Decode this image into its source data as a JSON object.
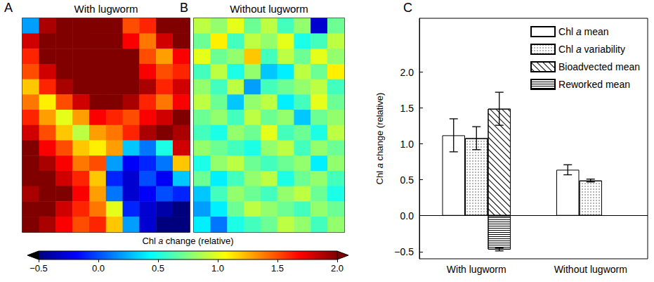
{
  "chart_data": [
    {
      "type": "heatmap",
      "panel": "A",
      "title": "With lugworm",
      "tick_labels": false,
      "cells": [
        [
          0.2,
          1.9,
          2.0,
          2.0,
          2.0,
          2.0,
          1.5,
          1.6,
          2.0,
          2.0
        ],
        [
          1.8,
          2.0,
          2.0,
          2.0,
          2.0,
          2.0,
          1.7,
          1.4,
          1.8,
          2.0
        ],
        [
          1.6,
          2.0,
          2.0,
          2.0,
          2.0,
          2.0,
          2.0,
          1.5,
          1.3,
          1.7
        ],
        [
          1.5,
          1.8,
          2.0,
          2.0,
          2.0,
          2.0,
          2.0,
          1.7,
          1.5,
          1.6
        ],
        [
          1.2,
          1.6,
          1.9,
          2.0,
          2.0,
          2.0,
          2.0,
          1.9,
          1.6,
          1.8
        ],
        [
          1.4,
          1.1,
          1.5,
          1.8,
          2.0,
          2.0,
          1.9,
          1.6,
          1.4,
          1.7
        ],
        [
          1.6,
          1.3,
          1.0,
          1.3,
          1.7,
          1.6,
          1.5,
          1.7,
          1.8,
          2.0
        ],
        [
          1.8,
          1.5,
          1.2,
          0.9,
          1.3,
          1.4,
          1.6,
          1.9,
          2.0,
          1.9
        ],
        [
          2.0,
          1.7,
          1.5,
          1.2,
          1.1,
          1.3,
          0.3,
          0.1,
          0.5,
          1.8
        ],
        [
          2.0,
          1.9,
          1.7,
          1.4,
          1.5,
          0.2,
          -0.2,
          -0.1,
          0.1,
          1.2
        ],
        [
          2.0,
          2.0,
          1.8,
          1.6,
          1.2,
          -0.1,
          -0.3,
          0.0,
          -0.2,
          0.3
        ],
        [
          1.9,
          2.0,
          2.0,
          1.7,
          1.3,
          0.1,
          -0.3,
          -0.2,
          0.0,
          -0.1
        ],
        [
          2.0,
          2.0,
          1.8,
          1.6,
          1.4,
          1.0,
          -0.1,
          -0.3,
          -0.4,
          -0.5
        ],
        [
          2.0,
          1.9,
          1.7,
          1.5,
          1.6,
          1.2,
          0.2,
          -0.3,
          -0.5,
          -0.5
        ]
      ]
    },
    {
      "type": "heatmap",
      "panel": "B",
      "title": "Without lugworm",
      "tick_labels": false,
      "cells": [
        [
          0.9,
          0.8,
          1.0,
          0.7,
          0.9,
          0.6,
          0.8,
          -0.3,
          0.7
        ],
        [
          0.7,
          1.1,
          0.6,
          0.9,
          0.8,
          1.0,
          0.5,
          0.6,
          0.9
        ],
        [
          1.0,
          0.7,
          0.8,
          1.2,
          0.6,
          0.9,
          0.7,
          1.0,
          0.8
        ],
        [
          0.6,
          0.9,
          0.5,
          0.8,
          0.3,
          0.4,
          0.9,
          0.7,
          1.1
        ],
        [
          0.8,
          0.6,
          0.9,
          0.2,
          0.6,
          0.7,
          0.8,
          0.9,
          0.6
        ],
        [
          0.9,
          0.7,
          0.3,
          0.8,
          0.9,
          0.4,
          0.6,
          1.0,
          0.7
        ],
        [
          0.7,
          0.8,
          0.6,
          0.9,
          0.7,
          0.8,
          0.3,
          0.7,
          0.8
        ],
        [
          0.6,
          0.5,
          0.8,
          0.7,
          1.0,
          0.6,
          0.7,
          0.5,
          0.9
        ],
        [
          0.8,
          0.7,
          0.6,
          0.5,
          0.8,
          0.9,
          0.6,
          0.8,
          0.7
        ],
        [
          0.5,
          0.8,
          0.9,
          0.7,
          0.6,
          0.7,
          0.8,
          0.4,
          0.8
        ],
        [
          0.7,
          0.4,
          0.6,
          0.8,
          0.9,
          0.5,
          0.7,
          0.8,
          0.6
        ],
        [
          0.3,
          0.6,
          0.8,
          0.7,
          0.6,
          0.8,
          0.9,
          0.7,
          0.5
        ],
        [
          0.2,
          0.4,
          0.7,
          0.9,
          0.8,
          0.7,
          0.6,
          0.8,
          0.7
        ],
        [
          0.4,
          0.1,
          0.5,
          0.6,
          0.7,
          0.9,
          0.8,
          0.6,
          0.8
        ]
      ]
    },
    {
      "type": "colorbar",
      "title": "Chl a change (relative)",
      "range": [
        -0.5,
        2.0
      ],
      "ticks": [
        {
          "value": -0.5,
          "label": "−0.5"
        },
        {
          "value": 0,
          "label": "0.0"
        },
        0.5,
        {
          "value": 1,
          "label": "1.0"
        },
        1.5,
        {
          "value": 2,
          "label": "2.0"
        }
      ]
    },
    {
      "type": "bar",
      "panel": "C",
      "ylabel": "Chl a change (relative)",
      "categories": [
        "With lugworm",
        "Without lugworm"
      ],
      "ylim": [
        -0.6,
        2.75
      ],
      "yticks": [
        {
          "value": -0.5,
          "label": "−0.5"
        },
        {
          "value": 0,
          "label": "0.0"
        },
        0.5,
        {
          "value": 1,
          "label": "1.0"
        },
        1.5,
        {
          "value": 2,
          "label": "2.0"
        }
      ],
      "legend": "upper right",
      "series": [
        {
          "name": "Chl a mean",
          "color": "#ffffff",
          "values": [
            1.12,
            0.64
          ],
          "errors": [
            0.23,
            0.07
          ]
        },
        {
          "name": "Chl a variability",
          "color": "#ffffff",
          "values": [
            1.08,
            0.49
          ],
          "errors": [
            0.16,
            0.02
          ]
        },
        {
          "name": "Bioadvected mean",
          "color": "#ffffff",
          "values": [
            1.49,
            null
          ],
          "errors": [
            0.23,
            null
          ],
          "stacked": true
        },
        {
          "name": "Reworked mean",
          "color": "#ffffff",
          "values": [
            -0.47,
            null
          ],
          "errors": [
            0.02,
            null
          ],
          "stacked": true
        }
      ]
    }
  ]
}
